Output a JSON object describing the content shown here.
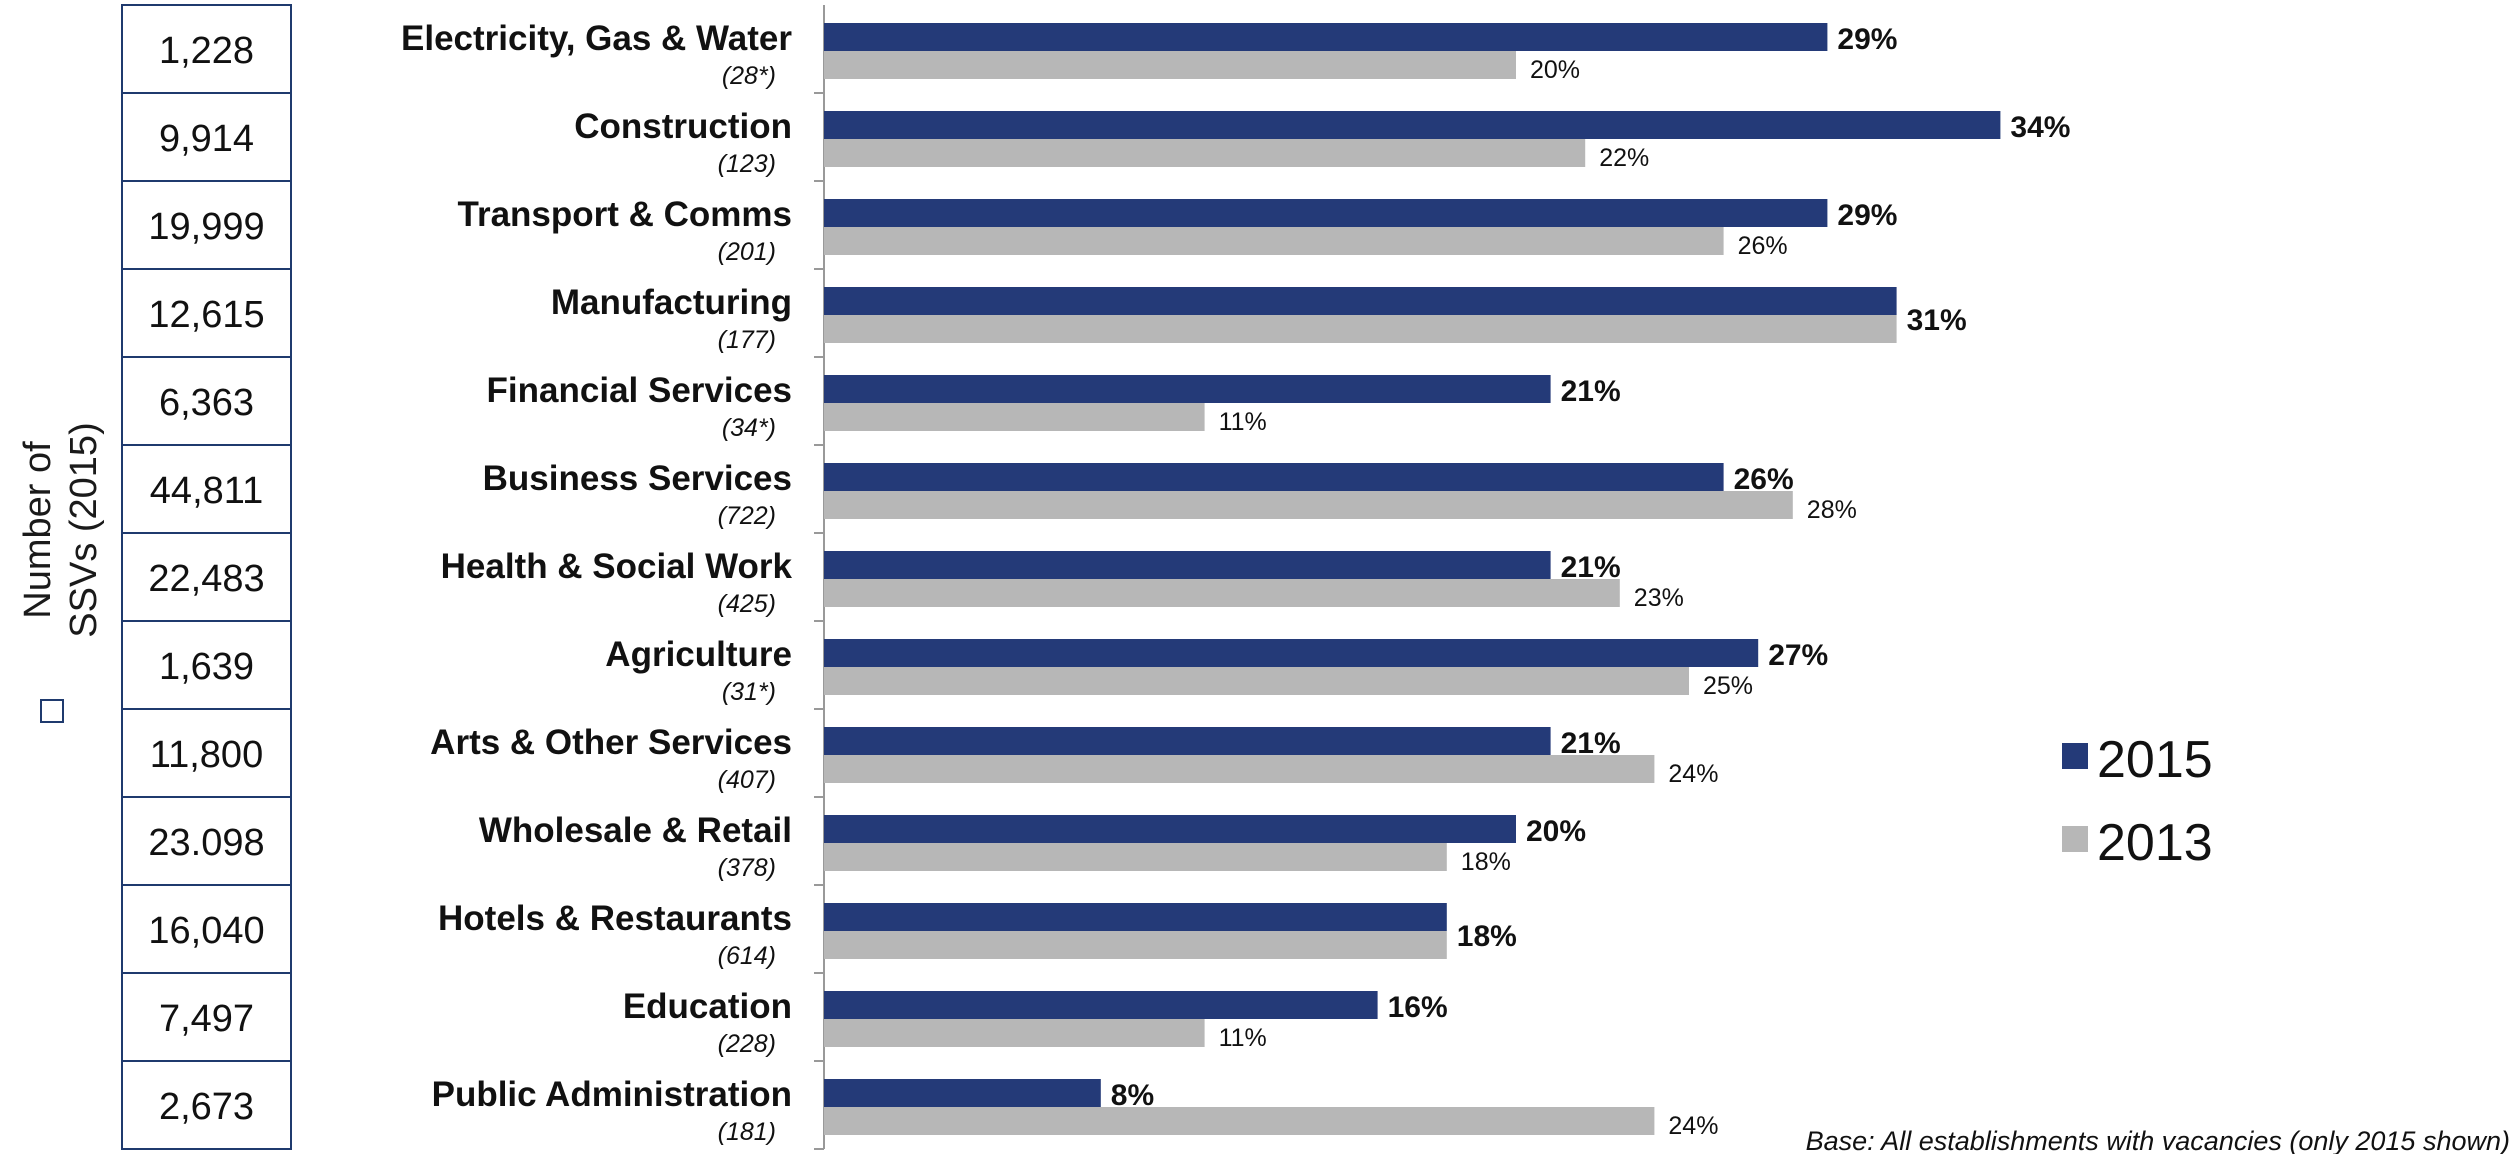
{
  "side_label": {
    "line1": "Number of",
    "line2": "SSVs (2015)"
  },
  "legend": [
    "2015",
    "2013"
  ],
  "footnote": "Base: All establishments with vacancies (only 2015 shown)",
  "colors": {
    "series_2015": "#243a78",
    "series_2013": "#b7b7b7",
    "table_border": "#1f3a6e"
  },
  "chart_data": {
    "type": "bar",
    "orientation": "horizontal",
    "categories": [
      "Electricity, Gas & Water",
      "Construction",
      "Transport & Comms",
      "Manufacturing",
      "Financial Services",
      "Business Services",
      "Health & Social Work",
      "Agriculture",
      "Arts & Other Services",
      "Wholesale & Retail",
      "Hotels & Restaurants",
      "Education",
      "Public Administration"
    ],
    "bases": [
      "(28*)",
      "(123)",
      "(201)",
      "(177)",
      "(34*)",
      "(722)",
      "(425)",
      "(31*)",
      "(407)",
      "(378)",
      "(614)",
      "(228)",
      "(181)"
    ],
    "ssv_counts": [
      "1,228",
      "9,914",
      "19,999",
      "12,615",
      "6,363",
      "44,811",
      "22,483",
      "1,639",
      "11,800",
      "23.098",
      "16,040",
      "7,497",
      "2,673"
    ],
    "series": [
      {
        "name": "2015",
        "values": [
          29,
          34,
          29,
          31,
          21,
          26,
          21,
          27,
          21,
          20,
          18,
          16,
          8
        ]
      },
      {
        "name": "2013",
        "values": [
          20,
          22,
          26,
          31,
          11,
          28,
          23,
          25,
          24,
          18,
          18,
          11,
          24
        ]
      }
    ],
    "value_labels_2015": [
      "29%",
      "34%",
      "29%",
      "31%",
      "21%",
      "26%",
      "21%",
      "27%",
      "21%",
      "20%",
      "18%",
      "16%",
      "8%"
    ],
    "value_labels_2013": [
      "20%",
      "22%",
      "26%",
      "",
      "11%",
      "28%",
      "23%",
      "25%",
      "24%",
      "18%",
      "",
      "11%",
      "24%"
    ],
    "xlim": [
      0,
      35
    ],
    "grid": false,
    "legend_position": "right"
  }
}
